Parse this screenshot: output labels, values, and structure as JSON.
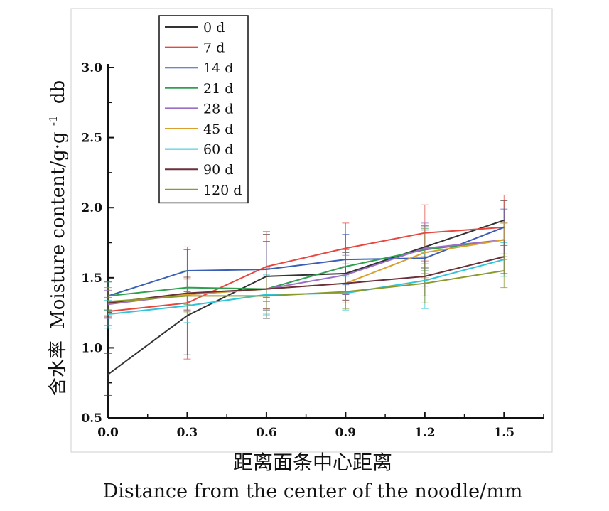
{
  "chart_data": {
    "type": "line",
    "ylabel": "含水率 Moisture content/g·g⁻¹ db",
    "ylabel_cn": "含水率",
    "ylabel_en": "Moisture content/g·g",
    "ylabel_sup": "-1",
    "ylabel_suffix": "db",
    "xlabel_cn": "距离面条中心距离",
    "xlabel_en": "Distance from the center of the noodle/mm",
    "x": [
      0.0,
      0.3,
      0.6,
      0.9,
      1.2,
      1.5
    ],
    "x_tick_labels": [
      "0.0",
      "0.3",
      "0.6",
      "0.9",
      "1.2",
      "1.5"
    ],
    "y_ticks": [
      0.5,
      1.0,
      1.5,
      2.0,
      2.5,
      3.0
    ],
    "y_tick_labels": [
      "0.5",
      "1.0",
      "1.5",
      "2.0",
      "2.5",
      "3.0"
    ],
    "xlim": [
      0.0,
      1.65
    ],
    "ylim": [
      0.5,
      3.0
    ],
    "grid": false,
    "legend_position": "top-left",
    "series": [
      {
        "name": "0 d",
        "color": "#333333",
        "values": [
          0.81,
          1.23,
          1.51,
          1.53,
          1.72,
          1.91
        ],
        "error": [
          0.15,
          0.28,
          0.3,
          0.15,
          0.15,
          0.14
        ]
      },
      {
        "name": "7 d",
        "color": "#e8473f",
        "values": [
          1.26,
          1.32,
          1.58,
          1.71,
          1.82,
          1.86
        ],
        "error": [
          0.1,
          0.4,
          0.25,
          0.18,
          0.2,
          0.23
        ]
      },
      {
        "name": "14 d",
        "color": "#3b5fb5",
        "values": [
          1.37,
          1.55,
          1.56,
          1.63,
          1.64,
          1.86
        ],
        "error": [
          0.1,
          0.15,
          0.2,
          0.18,
          0.2,
          0.13
        ]
      },
      {
        "name": "21 d",
        "color": "#2ea04f",
        "values": [
          1.37,
          1.43,
          1.42,
          1.58,
          1.7,
          1.77
        ],
        "error": [
          0.1,
          0.12,
          0.15,
          0.12,
          0.15,
          0.12
        ]
      },
      {
        "name": "28 d",
        "color": "#9b6fc6",
        "values": [
          1.31,
          1.38,
          1.42,
          1.52,
          1.71,
          1.77
        ],
        "error": [
          0.1,
          0.12,
          0.15,
          0.14,
          0.18,
          0.12
        ]
      },
      {
        "name": "45 d",
        "color": "#d9a030",
        "values": [
          1.32,
          1.38,
          1.42,
          1.46,
          1.68,
          1.77
        ],
        "error": [
          0.1,
          0.12,
          0.14,
          0.14,
          0.18,
          0.12
        ]
      },
      {
        "name": "60 d",
        "color": "#2fc4d9",
        "values": [
          1.24,
          1.3,
          1.38,
          1.39,
          1.48,
          1.63
        ],
        "error": [
          0.1,
          0.12,
          0.14,
          0.12,
          0.2,
          0.12
        ]
      },
      {
        "name": "90 d",
        "color": "#6b2f3a",
        "values": [
          1.32,
          1.39,
          1.42,
          1.46,
          1.51,
          1.65
        ],
        "error": [
          0.1,
          0.12,
          0.14,
          0.12,
          0.14,
          0.12
        ]
      },
      {
        "name": "120 d",
        "color": "#8a9a2a",
        "values": [
          1.33,
          1.37,
          1.37,
          1.4,
          1.46,
          1.55
        ],
        "error": [
          0.1,
          0.12,
          0.14,
          0.12,
          0.14,
          0.12
        ]
      }
    ]
  }
}
